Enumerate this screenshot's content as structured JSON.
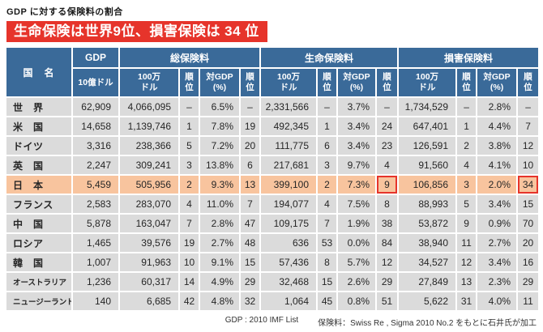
{
  "page": {
    "title": "GDP に対する保険料の割合",
    "banner": "生命保険は世界9位、損害保険は 34 位",
    "footer": {
      "gdp_source": "GDP : 2010 IMF List",
      "premium_source": "保険料：Swiss Re , Sigma 2010 No.2 をもとに石井氏が加工"
    },
    "colors": {
      "header_bg": "#3a6a99",
      "row_bg": "#dbdbdb",
      "japan_row_bg": "#f8c49e",
      "accent_red": "#e6342b"
    }
  },
  "chart_data": {
    "type": "table",
    "title": "GDP に対する保険料の割合",
    "headline": "生命保険は世界9位、損害保険は 34 位",
    "header": {
      "country": "国　名",
      "groups": [
        {
          "label": "GDP",
          "subs": [
            "10億ドル"
          ]
        },
        {
          "label": "総保険料",
          "subs": [
            "100万\nドル",
            "順\n位",
            "対GDP\n(%)",
            "順\n位"
          ]
        },
        {
          "label": "生命保険料",
          "subs": [
            "100万\nドル",
            "順\n位",
            "対GDP\n(%)",
            "順\n位"
          ]
        },
        {
          "label": "損害保険料",
          "subs": [
            "100万\nドル",
            "順\n位",
            "対GDP\n(%)",
            "順\n位"
          ]
        }
      ]
    },
    "columns": [
      "国名",
      "GDP 10億ドル",
      "総保険料 100万ドル",
      "総保険料 順位",
      "総保険料 対GDP(%)",
      "総保険料 対GDP順位",
      "生命保険料 100万ドル",
      "生命保険料 順位",
      "生命保険料 対GDP(%)",
      "生命保険料 対GDP順位",
      "損害保険料 100万ドル",
      "損害保険料 順位",
      "損害保険料 対GDP(%)",
      "損害保険料 対GDP順位"
    ],
    "rows": [
      {
        "country": "世　界",
        "cells": [
          "62,909",
          "4,066,095",
          "–",
          "6.5%",
          "–",
          "2,331,566",
          "–",
          "3.7%",
          "–",
          "1,734,529",
          "–",
          "2.8%",
          "–"
        ],
        "highlight": false,
        "boxed": []
      },
      {
        "country": "米　国",
        "cells": [
          "14,658",
          "1,139,746",
          "1",
          "7.8%",
          "19",
          "492,345",
          "1",
          "3.4%",
          "24",
          "647,401",
          "1",
          "4.4%",
          "7"
        ],
        "highlight": false,
        "boxed": []
      },
      {
        "country": "ドイツ",
        "cells": [
          "3,316",
          "238,366",
          "5",
          "7.2%",
          "20",
          "111,775",
          "6",
          "3.4%",
          "23",
          "126,591",
          "2",
          "3.8%",
          "12"
        ],
        "highlight": false,
        "boxed": []
      },
      {
        "country": "英　国",
        "cells": [
          "2,247",
          "309,241",
          "3",
          "13.8%",
          "6",
          "217,681",
          "3",
          "9.7%",
          "4",
          "91,560",
          "4",
          "4.1%",
          "10"
        ],
        "highlight": false,
        "boxed": []
      },
      {
        "country": "日　本",
        "cells": [
          "5,459",
          "505,956",
          "2",
          "9.3%",
          "13",
          "399,100",
          "2",
          "7.3%",
          "9",
          "106,856",
          "3",
          "2.0%",
          "34"
        ],
        "highlight": true,
        "boxed": [
          8,
          12
        ]
      },
      {
        "country": "フランス",
        "cells": [
          "2,583",
          "283,070",
          "4",
          "11.0%",
          "7",
          "194,077",
          "4",
          "7.5%",
          "8",
          "88,993",
          "5",
          "3.4%",
          "15"
        ],
        "highlight": false,
        "boxed": []
      },
      {
        "country": "中　国",
        "cells": [
          "5,878",
          "163,047",
          "7",
          "2.8%",
          "47",
          "109,175",
          "7",
          "1.9%",
          "38",
          "53,872",
          "9",
          "0.9%",
          "70"
        ],
        "highlight": false,
        "boxed": []
      },
      {
        "country": "ロシア",
        "cells": [
          "1,465",
          "39,576",
          "19",
          "2.7%",
          "48",
          "636",
          "53",
          "0.0%",
          "84",
          "38,940",
          "11",
          "2.7%",
          "20"
        ],
        "highlight": false,
        "boxed": []
      },
      {
        "country": "韓　国",
        "cells": [
          "1,007",
          "91,963",
          "10",
          "9.1%",
          "15",
          "57,436",
          "8",
          "5.7%",
          "12",
          "34,527",
          "12",
          "3.4%",
          "16"
        ],
        "highlight": false,
        "boxed": []
      },
      {
        "country": "オーストラリア",
        "cells": [
          "1,236",
          "60,317",
          "14",
          "4.9%",
          "29",
          "32,468",
          "15",
          "2.6%",
          "29",
          "27,849",
          "13",
          "2.3%",
          "29"
        ],
        "highlight": false,
        "boxed": []
      },
      {
        "country": "ニュージーランド",
        "cells": [
          "140",
          "6,685",
          "42",
          "4.8%",
          "32",
          "1,064",
          "45",
          "0.8%",
          "51",
          "5,622",
          "31",
          "4.0%",
          "11"
        ],
        "highlight": false,
        "boxed": []
      }
    ]
  }
}
